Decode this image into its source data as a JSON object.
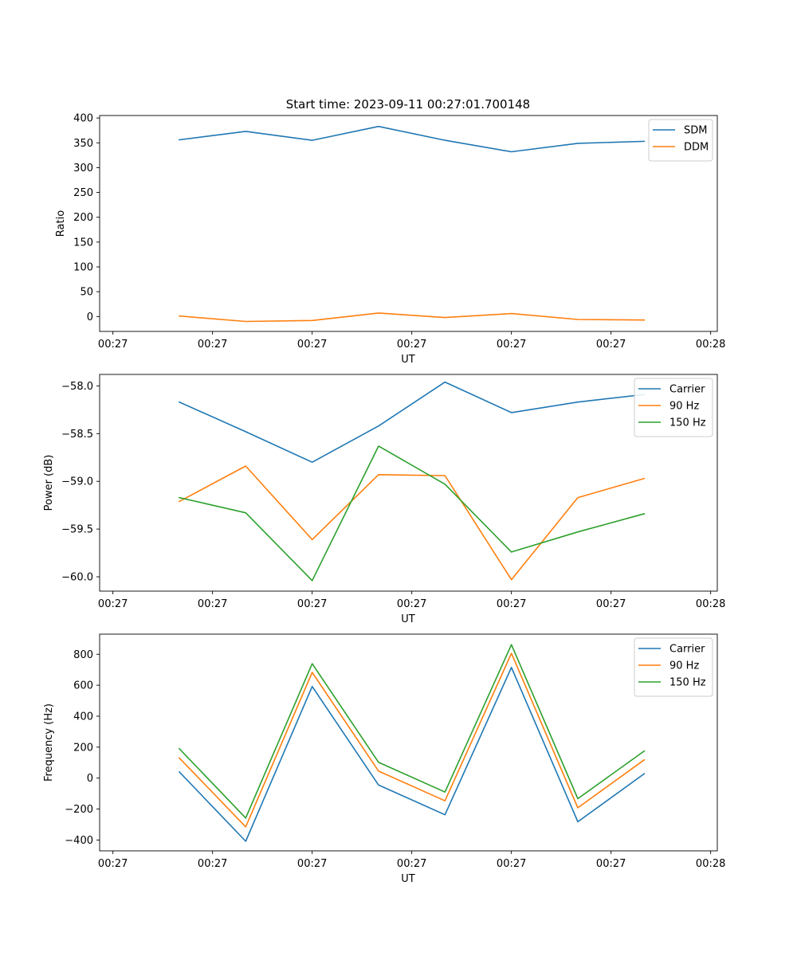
{
  "figure_title": "Start time: 2023-09-11 00:27:01.700148",
  "chart_data": [
    {
      "type": "line",
      "id": "ratio",
      "title": "Start time: 2023-09-11 00:27:01.700148",
      "xlabel": "UT",
      "ylabel": "Ratio",
      "x": [
        1,
        2,
        3,
        4,
        5,
        6,
        7,
        8
      ],
      "xlim": [
        -0.2,
        9.1
      ],
      "xticks": [
        0,
        1.5,
        3,
        4.5,
        6,
        7.5,
        9
      ],
      "xtick_labels": [
        "00:27",
        "00:27",
        "00:27",
        "00:27",
        "00:27",
        "00:27",
        "00:28"
      ],
      "ylim": [
        -30,
        405
      ],
      "yticks": [
        0,
        50,
        100,
        150,
        200,
        250,
        300,
        350,
        400
      ],
      "ytick_labels": [
        "0",
        "50",
        "100",
        "150",
        "200",
        "250",
        "300",
        "350",
        "400"
      ],
      "legend_position": "top-right",
      "series": [
        {
          "name": "SDM",
          "color": "#1f77b4",
          "values": [
            356,
            373,
            355,
            383,
            355,
            332,
            349,
            353
          ]
        },
        {
          "name": "DDM",
          "color": "#ff7f0e",
          "values": [
            1,
            -10,
            -8,
            7,
            -2,
            6,
            -6,
            -7
          ]
        }
      ]
    },
    {
      "type": "line",
      "id": "power",
      "title": "",
      "xlabel": "UT",
      "ylabel": "Power (dB)",
      "x": [
        1,
        2,
        3,
        4,
        5,
        6,
        7,
        8
      ],
      "xlim": [
        -0.2,
        9.1
      ],
      "xticks": [
        0,
        1.5,
        3,
        4.5,
        6,
        7.5,
        9
      ],
      "xtick_labels": [
        "00:27",
        "00:27",
        "00:27",
        "00:27",
        "00:27",
        "00:27",
        "00:28"
      ],
      "ylim": [
        -60.15,
        -57.88
      ],
      "yticks": [
        -60.0,
        -59.5,
        -59.0,
        -58.5,
        -58.0
      ],
      "ytick_labels": [
        "−60.0",
        "−59.5",
        "−59.0",
        "−58.5",
        "−58.0"
      ],
      "legend_position": "top-right",
      "series": [
        {
          "name": "Carrier",
          "color": "#1f77b4",
          "values": [
            -58.17,
            -58.48,
            -58.8,
            -58.42,
            -57.96,
            -58.28,
            -58.17,
            -58.09
          ]
        },
        {
          "name": "90 Hz",
          "color": "#ff7f0e",
          "values": [
            -59.21,
            -58.84,
            -59.61,
            -58.93,
            -58.94,
            -60.03,
            -59.17,
            -58.97
          ]
        },
        {
          "name": "150 Hz",
          "color": "#2ca02c",
          "values": [
            -59.17,
            -59.33,
            -60.04,
            -58.63,
            -59.03,
            -59.74,
            -59.53,
            -59.34
          ]
        }
      ]
    },
    {
      "type": "line",
      "id": "frequency",
      "title": "",
      "xlabel": "UT",
      "ylabel": "Frequency (Hz)",
      "x": [
        1,
        2,
        3,
        4,
        5,
        6,
        7,
        8
      ],
      "xlim": [
        -0.2,
        9.1
      ],
      "xticks": [
        0,
        1.5,
        3,
        4.5,
        6,
        7.5,
        9
      ],
      "xtick_labels": [
        "00:27",
        "00:27",
        "00:27",
        "00:27",
        "00:27",
        "00:27",
        "00:28"
      ],
      "ylim": [
        -470,
        930
      ],
      "yticks": [
        -400,
        -200,
        0,
        200,
        400,
        600,
        800
      ],
      "ytick_labels": [
        "−400",
        "−200",
        "0",
        "200",
        "400",
        "600",
        "800"
      ],
      "legend_position": "top-right",
      "series": [
        {
          "name": "Carrier",
          "color": "#1f77b4",
          "values": [
            40,
            -408,
            592,
            -45,
            -237,
            715,
            -282,
            28
          ]
        },
        {
          "name": "90 Hz",
          "color": "#ff7f0e",
          "values": [
            130,
            -315,
            683,
            45,
            -147,
            806,
            -192,
            118
          ]
        },
        {
          "name": "150 Hz",
          "color": "#2ca02c",
          "values": [
            190,
            -258,
            739,
            102,
            -90,
            862,
            -133,
            175
          ]
        }
      ]
    }
  ]
}
